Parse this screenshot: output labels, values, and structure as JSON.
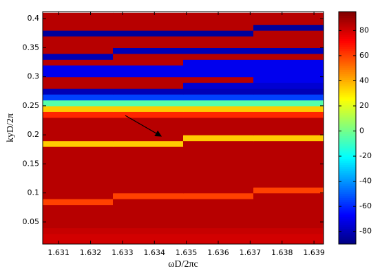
{
  "chart_data": {
    "type": "heatmap",
    "x_label": "ωD/2πc",
    "y_label": "kyD/2π",
    "xlim": [
      1.6305,
      1.6393
    ],
    "ylim": [
      0.012,
      0.412
    ],
    "xticks": [
      1.631,
      1.632,
      1.633,
      1.634,
      1.635,
      1.636,
      1.637,
      1.638,
      1.639
    ],
    "yticks": [
      0.05,
      0.1,
      0.15,
      0.2,
      0.25,
      0.3,
      0.35,
      0.4
    ],
    "colormap": "jet",
    "clim": [
      -90,
      95
    ],
    "colorbar_ticks": [
      -80,
      -60,
      -40,
      -20,
      0,
      20,
      40,
      60,
      80
    ],
    "x": [
      1.6316,
      1.6338,
      1.636,
      1.6382
    ],
    "y": [
      0.015,
      0.025,
      0.035,
      0.045,
      0.055,
      0.065,
      0.075,
      0.085,
      0.095,
      0.105,
      0.115,
      0.125,
      0.135,
      0.145,
      0.155,
      0.165,
      0.175,
      0.185,
      0.195,
      0.205,
      0.215,
      0.225,
      0.235,
      0.245,
      0.255,
      0.265,
      0.275,
      0.285,
      0.295,
      0.305,
      0.315,
      0.325,
      0.335,
      0.345,
      0.355,
      0.365,
      0.375,
      0.385,
      0.395,
      0.405
    ],
    "z": [
      [
        80,
        80,
        80,
        80
      ],
      [
        80,
        80,
        80,
        80
      ],
      [
        82,
        82,
        82,
        82
      ],
      [
        85,
        85,
        85,
        85
      ],
      [
        85,
        85,
        85,
        85
      ],
      [
        85,
        85,
        85,
        85
      ],
      [
        85,
        85,
        85,
        85
      ],
      [
        60,
        85,
        85,
        85
      ],
      [
        85,
        60,
        60,
        85
      ],
      [
        85,
        85,
        85,
        60
      ],
      [
        85,
        85,
        85,
        85
      ],
      [
        85,
        85,
        85,
        85
      ],
      [
        85,
        85,
        85,
        85
      ],
      [
        85,
        85,
        85,
        85
      ],
      [
        85,
        85,
        85,
        85
      ],
      [
        85,
        85,
        85,
        85
      ],
      [
        85,
        85,
        85,
        85
      ],
      [
        35,
        35,
        85,
        85
      ],
      [
        85,
        85,
        35,
        35
      ],
      [
        85,
        85,
        85,
        85
      ],
      [
        85,
        85,
        85,
        85
      ],
      [
        85,
        85,
        85,
        85
      ],
      [
        65,
        65,
        65,
        65
      ],
      [
        35,
        35,
        35,
        35
      ],
      [
        -5,
        -5,
        -5,
        -5
      ],
      [
        -55,
        -55,
        -55,
        -55
      ],
      [
        -80,
        -80,
        -80,
        -80
      ],
      [
        85,
        85,
        -75,
        -75
      ],
      [
        85,
        85,
        85,
        -70
      ],
      [
        -70,
        -70,
        -70,
        -70
      ],
      [
        -70,
        -70,
        -70,
        -70
      ],
      [
        85,
        85,
        -70,
        -70
      ],
      [
        -80,
        85,
        85,
        85
      ],
      [
        85,
        -80,
        -80,
        -80
      ],
      [
        85,
        85,
        85,
        85
      ],
      [
        85,
        85,
        85,
        85
      ],
      [
        -85,
        -85,
        -85,
        85
      ],
      [
        85,
        85,
        85,
        -85
      ],
      [
        85,
        85,
        85,
        85
      ],
      [
        85,
        85,
        85,
        85
      ]
    ]
  }
}
